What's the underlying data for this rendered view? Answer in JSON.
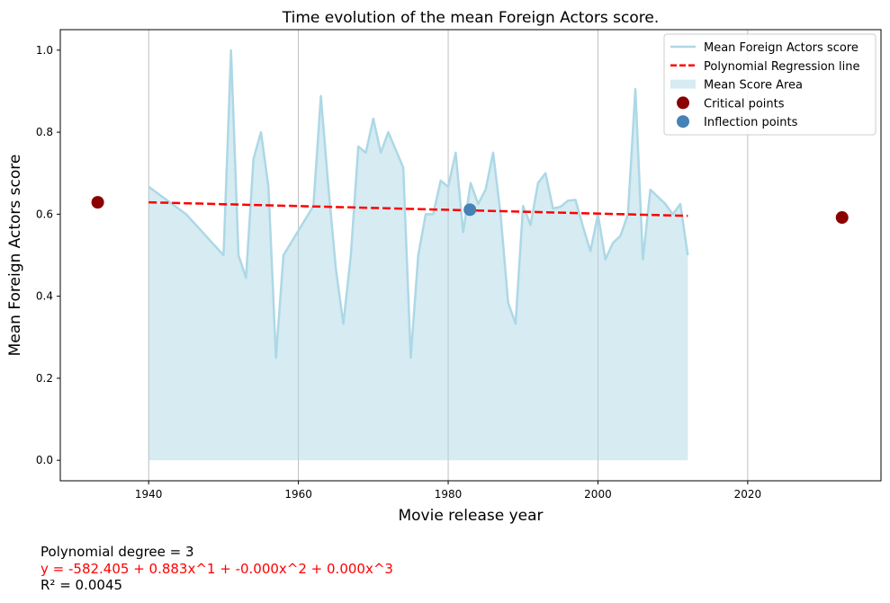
{
  "chart_data": {
    "type": "line",
    "title": "Time evolution of the mean Foreign Actors score.",
    "xlabel": "Movie release year",
    "ylabel": "Mean Foreign Actors score",
    "xlim": [
      1928.2,
      2037.8
    ],
    "ylim": [
      -0.05,
      1.05
    ],
    "xticks": [
      1940,
      1960,
      1980,
      2000,
      2020
    ],
    "yticks": [
      0.0,
      0.2,
      0.4,
      0.6,
      0.8,
      1.0
    ],
    "x_grid": true,
    "y_grid": false,
    "legend_position": "top-right",
    "series": [
      {
        "name": "Mean Foreign Actors score",
        "kind": "line",
        "color": "#add8e6",
        "x": [
          1940,
          1945,
          1950,
          1951,
          1952,
          1953,
          1954,
          1955,
          1956,
          1957,
          1958,
          1962,
          1963,
          1964,
          1965,
          1966,
          1967,
          1968,
          1969,
          1970,
          1971,
          1972,
          1974,
          1975,
          1976,
          1977,
          1978,
          1979,
          1980,
          1981,
          1982,
          1983,
          1984,
          1985,
          1986,
          1987,
          1988,
          1989,
          1990,
          1991,
          1992,
          1993,
          1994,
          1995,
          1996,
          1997,
          1998,
          1999,
          2000,
          2001,
          2002,
          2003,
          2004,
          2005,
          2006,
          2007,
          2009,
          2010,
          2011,
          2012
        ],
        "y": [
          0.667,
          0.6,
          0.5,
          1.0,
          0.5,
          0.445,
          0.735,
          0.8,
          0.667,
          0.25,
          0.5,
          0.62,
          0.888,
          0.667,
          0.467,
          0.333,
          0.5,
          0.765,
          0.75,
          0.833,
          0.75,
          0.8,
          0.714,
          0.25,
          0.5,
          0.6,
          0.6,
          0.682,
          0.667,
          0.75,
          0.556,
          0.676,
          0.625,
          0.66,
          0.75,
          0.6,
          0.385,
          0.333,
          0.62,
          0.574,
          0.676,
          0.7,
          0.614,
          0.618,
          0.633,
          0.635,
          0.57,
          0.51,
          0.6,
          0.49,
          0.53,
          0.547,
          0.6,
          0.905,
          0.49,
          0.66,
          0.625,
          0.6,
          0.625,
          0.5
        ]
      },
      {
        "name": "Polynomial Regression line",
        "kind": "dashed-line",
        "color": "#ff0000",
        "x": [
          1940,
          2012
        ],
        "y": [
          0.629,
          0.596
        ]
      },
      {
        "name": "Mean Score Area",
        "kind": "area",
        "color": "#add8e6"
      },
      {
        "name": "Critical points",
        "kind": "scatter",
        "color": "#8b0000",
        "x": [
          1933.2,
          2032.6
        ],
        "y": [
          0.629,
          0.592
        ]
      },
      {
        "name": "Inflection points",
        "kind": "scatter",
        "color": "#4682b4",
        "x": [
          1982.9
        ],
        "y": [
          0.611
        ]
      }
    ]
  },
  "footnote": {
    "degree": "Polynomial degree = 3",
    "equation": "y = -582.405 + 0.883x^1 + -0.000x^2 + 0.000x^3",
    "equation_color": "#ff0000",
    "r2": "R² = 0.0045"
  }
}
